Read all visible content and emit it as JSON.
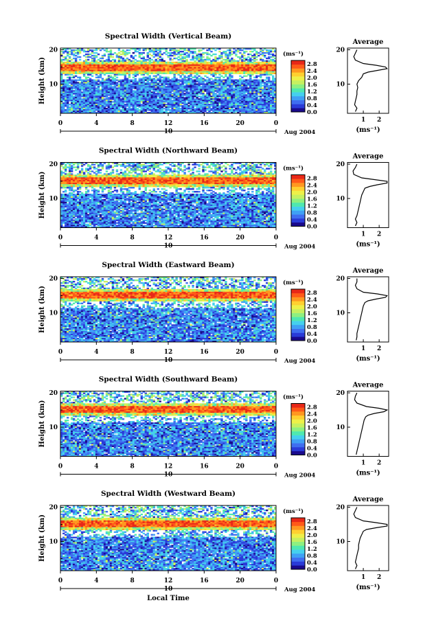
{
  "common": {
    "cb_title": "(ms⁻¹)",
    "cb_ticks": [
      "2.8",
      "2.4",
      "2.0",
      "1.6",
      "1.2",
      "0.8",
      "0.4",
      "0.0"
    ],
    "ylabel": "Height (km)",
    "x_ticks": [
      "0",
      "4",
      "8",
      "12",
      "16",
      "20",
      "0"
    ],
    "day_label": "10",
    "date_label": "Aug 2004",
    "avg_title": "Average",
    "avg_xlabel": "(ms⁻¹)",
    "avg_y_ticks": [
      "20",
      "10"
    ],
    "main_y_ticks": [
      "20",
      "10"
    ],
    "xlabel_bottom": "Local Time"
  },
  "colormap": [
    "#1a0a8c",
    "#2a3bd8",
    "#3f6ef0",
    "#3fa0f5",
    "#45d0ee",
    "#4fe8b0",
    "#8ef080",
    "#c6f060",
    "#eef048",
    "#ffd030",
    "#ff9820",
    "#ff5a18",
    "#e82818"
  ],
  "chart_data": [
    {
      "type": "heatmap",
      "title": "Spectral Width (Vertical Beam)",
      "xlabel": "",
      "ylabel": "Height (km)",
      "x_range": [
        0,
        24
      ],
      "y_range": [
        1.5,
        20.5
      ],
      "color_range": [
        0.0,
        3.0
      ],
      "colorbar_label": "(ms⁻¹)",
      "peak_height_km": 14.8,
      "profile": {
        "title": "Average",
        "xlabel": "(ms⁻¹)",
        "x_ticks": [
          "1",
          "2"
        ],
        "xlim": [
          0,
          2.6
        ],
        "heights": [
          2,
          3,
          4,
          5,
          6,
          7,
          8,
          9,
          10,
          11,
          12,
          13,
          13.5,
          14,
          14.5,
          15,
          15.5,
          16,
          17,
          18,
          19,
          20
        ],
        "values": [
          0.5,
          0.6,
          0.45,
          0.5,
          0.55,
          0.6,
          0.6,
          0.65,
          0.6,
          0.7,
          0.9,
          1.0,
          1.3,
          1.9,
          2.5,
          2.4,
          1.8,
          1.0,
          0.5,
          0.4,
          0.5,
          0.6
        ]
      }
    },
    {
      "type": "heatmap",
      "title": "Spectral Width (Northward Beam)",
      "xlabel": "",
      "ylabel": "Height (km)",
      "x_range": [
        0,
        24
      ],
      "y_range": [
        1.5,
        20.5
      ],
      "color_range": [
        0.0,
        3.0
      ],
      "colorbar_label": "(ms⁻¹)",
      "peak_height_km": 15.0,
      "profile": {
        "title": "Average",
        "xlabel": "(ms⁻¹)",
        "x_ticks": [
          "1",
          "2"
        ],
        "xlim": [
          0,
          2.6
        ],
        "heights": [
          2,
          3,
          4,
          5,
          6,
          7,
          8,
          9,
          10,
          11,
          12,
          13,
          13.5,
          14,
          14.5,
          15,
          15.5,
          16,
          17,
          18,
          19,
          20
        ],
        "values": [
          0.5,
          0.6,
          0.5,
          0.6,
          0.65,
          0.7,
          0.75,
          0.8,
          0.85,
          0.9,
          1.0,
          1.1,
          1.4,
          1.9,
          2.5,
          2.5,
          1.7,
          0.9,
          0.4,
          0.35,
          0.5,
          0.6
        ]
      }
    },
    {
      "type": "heatmap",
      "title": "Spectral Width (Eastward Beam)",
      "xlabel": "",
      "ylabel": "Height (km)",
      "x_range": [
        0,
        24
      ],
      "y_range": [
        1.5,
        20.5
      ],
      "color_range": [
        0.0,
        3.0
      ],
      "colorbar_label": "(ms⁻¹)",
      "peak_height_km": 15.0,
      "profile": {
        "title": "Average",
        "xlabel": "(ms⁻¹)",
        "x_ticks": [
          "1",
          "2"
        ],
        "xlim": [
          0,
          2.6
        ],
        "heights": [
          2,
          3,
          4,
          5,
          6,
          7,
          8,
          9,
          10,
          11,
          12,
          13,
          13.5,
          14,
          14.5,
          15,
          15.5,
          16,
          17,
          18,
          19,
          20
        ],
        "values": [
          0.55,
          0.6,
          0.6,
          0.65,
          0.7,
          0.75,
          0.8,
          0.85,
          0.9,
          0.95,
          1.0,
          1.1,
          1.3,
          1.8,
          2.4,
          2.5,
          1.9,
          1.0,
          0.6,
          0.5,
          0.6,
          0.6
        ]
      }
    },
    {
      "type": "heatmap",
      "title": "Spectral Width (Southward Beam)",
      "xlabel": "",
      "ylabel": "Height (km)",
      "x_range": [
        0,
        24
      ],
      "y_range": [
        1.5,
        20.5
      ],
      "color_range": [
        0.0,
        3.0
      ],
      "colorbar_label": "(ms⁻¹)",
      "peak_height_km": 15.2,
      "profile": {
        "title": "Average",
        "xlabel": "(ms⁻¹)",
        "x_ticks": [
          "1",
          "2"
        ],
        "xlim": [
          0,
          2.6
        ],
        "heights": [
          2,
          3,
          4,
          5,
          6,
          7,
          8,
          9,
          10,
          11,
          12,
          13,
          13.5,
          14,
          14.5,
          15,
          15.5,
          16,
          17,
          18,
          19,
          20
        ],
        "values": [
          0.55,
          0.6,
          0.65,
          0.7,
          0.75,
          0.8,
          0.85,
          0.9,
          0.95,
          1.0,
          1.05,
          1.15,
          1.3,
          1.7,
          2.3,
          2.5,
          2.0,
          1.2,
          0.6,
          0.45,
          0.5,
          0.6
        ]
      }
    },
    {
      "type": "heatmap",
      "title": "Spectral Width (Westward Beam)",
      "xlabel": "Local Time",
      "ylabel": "Height (km)",
      "x_range": [
        0,
        24
      ],
      "y_range": [
        1.5,
        20.5
      ],
      "color_range": [
        0.0,
        3.0
      ],
      "colorbar_label": "(ms⁻¹)",
      "peak_height_km": 15.0,
      "profile": {
        "title": "Average",
        "xlabel": "(ms⁻¹)",
        "x_ticks": [
          "1",
          "2"
        ],
        "xlim": [
          0,
          2.6
        ],
        "heights": [
          2,
          3,
          4,
          5,
          6,
          7,
          8,
          9,
          10,
          11,
          12,
          13,
          13.5,
          14,
          14.5,
          15,
          15.5,
          16,
          17,
          18,
          19,
          20
        ],
        "values": [
          0.5,
          0.6,
          0.5,
          0.55,
          0.6,
          0.65,
          0.7,
          0.7,
          0.75,
          0.8,
          0.9,
          1.0,
          1.2,
          1.8,
          2.5,
          2.5,
          1.8,
          1.0,
          0.5,
          0.4,
          0.5,
          0.6
        ]
      }
    }
  ]
}
